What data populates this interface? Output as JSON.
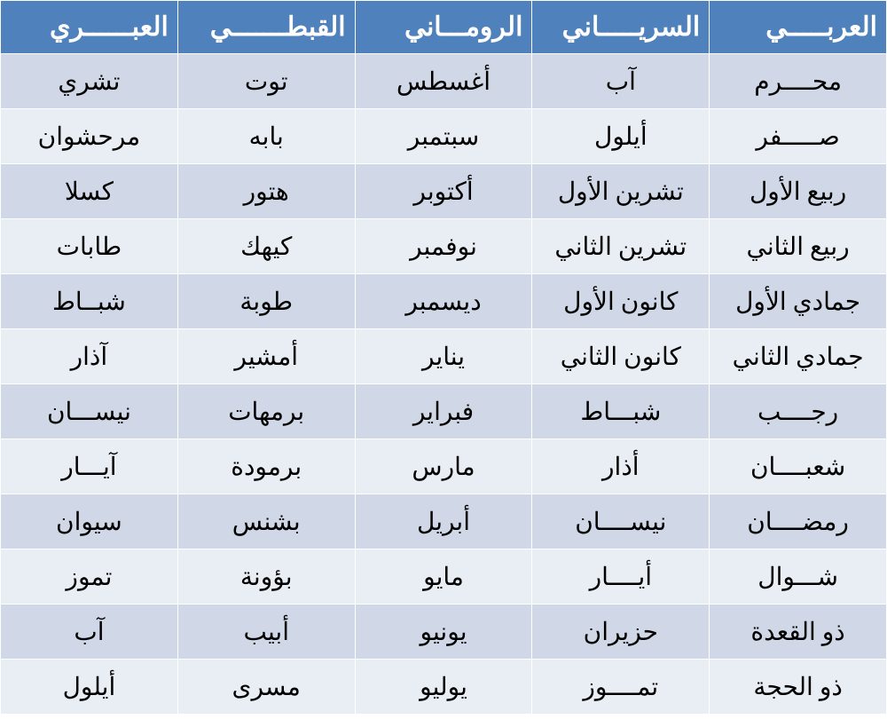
{
  "calendar_table": {
    "type": "table",
    "direction": "rtl",
    "header_bg": "#4f81bd",
    "header_text_color": "#ffffff",
    "row_odd_bg": "#d0d8e8",
    "row_even_bg": "#e9edf4",
    "border_color": "#ffffff",
    "cell_text_color": "#000000",
    "header_fontsize": 30,
    "cell_fontsize": 28,
    "columns": [
      "العربـــــي",
      "السريـــــاني",
      "الرومـــاني",
      "القبطـــــــي",
      "العبــــــري"
    ],
    "rows": [
      [
        "محــــرم",
        "آب",
        "أغسطس",
        "توت",
        "تشري"
      ],
      [
        "صـــــفر",
        "أيلول",
        "سبتمبر",
        "بابه",
        "مرحشوان"
      ],
      [
        "ربيع الأول",
        "تشرين الأول",
        "أكتوبر",
        "هتور",
        "كسلا"
      ],
      [
        "ربيع الثاني",
        "تشرين الثاني",
        "نوفمبر",
        "كيهك",
        "طابات"
      ],
      [
        "جمادي الأول",
        "كانون الأول",
        "ديسمبر",
        "طوبة",
        "شبــاط"
      ],
      [
        "جمادي الثاني",
        "كانون الثاني",
        "يناير",
        "أمشير",
        "آذار"
      ],
      [
        "رجــــب",
        "شبـــاط",
        "فبراير",
        "برمهات",
        "نيســـان"
      ],
      [
        "شعبــــان",
        "أذار",
        "مارس",
        "برمودة",
        "آيـــار"
      ],
      [
        "رمضــــان",
        "نيســــان",
        "أبريل",
        "بشنس",
        "سيوان"
      ],
      [
        "شـــوال",
        "أيــــار",
        "مايو",
        "بؤونة",
        "تموز"
      ],
      [
        "ذو القعدة",
        "حزيران",
        "يونيو",
        "أبيب",
        "آب"
      ],
      [
        "ذو الحجة",
        "تمــــوز",
        "يوليو",
        "مسرى",
        "أيلول"
      ]
    ]
  }
}
